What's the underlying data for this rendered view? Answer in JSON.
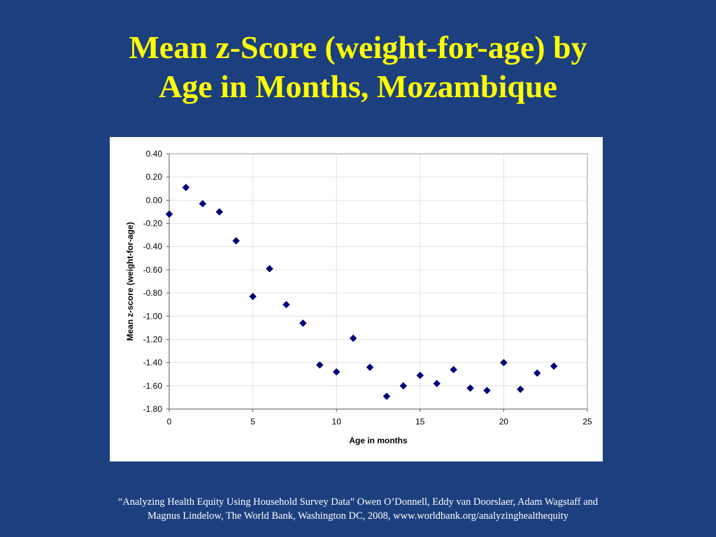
{
  "slide": {
    "title_line1": "Mean z-Score (weight-for-age) by",
    "title_line2": "Age in Months, Mozambique",
    "footer_line1": "“Analyzing Health Equity Using Household Survey Data” Owen O’Donnell, Eddy van Doorslaer, Adam Wagstaff and",
    "footer_line2": "Magnus Lindelow, The World Bank, Washington DC, 2008, www.worldbank.org/analyzinghealthequity"
  },
  "colors": {
    "background": "#1c3f7f",
    "title": "#ffff00",
    "marker": "#00007a",
    "footer_text": "#ffffff"
  },
  "chart_data": {
    "type": "scatter",
    "title": "",
    "xlabel": "Age in months",
    "ylabel": "Mean z-score (weight-for-age)",
    "xlim": [
      0,
      25
    ],
    "ylim": [
      -1.8,
      0.4
    ],
    "xticks": [
      0,
      5,
      10,
      15,
      20,
      25
    ],
    "yticks": [
      0.4,
      0.2,
      0.0,
      -0.2,
      -0.4,
      -0.6,
      -0.8,
      -1.0,
      -1.2,
      -1.4,
      -1.6,
      -1.8
    ],
    "ytick_labels": [
      "0.40",
      "0.20",
      "0.00",
      "-0.20",
      "-0.40",
      "-0.60",
      "-0.80",
      "-1.00",
      "-1.20",
      "-1.40",
      "-1.60",
      "-1.80"
    ],
    "xtick_labels": [
      "0",
      "5",
      "10",
      "15",
      "20",
      "25"
    ],
    "grid": true,
    "marker": "diamond",
    "series": [
      {
        "x": [
          0,
          1,
          2,
          3,
          4,
          5,
          6,
          7,
          8,
          9,
          10,
          11,
          12,
          13,
          14,
          15,
          16,
          17,
          18,
          19,
          20,
          21,
          22,
          23
        ],
        "y": [
          -0.12,
          0.11,
          -0.03,
          -0.1,
          -0.35,
          -0.83,
          -0.59,
          -0.9,
          -1.06,
          -1.42,
          -1.48,
          -1.19,
          -1.44,
          -1.69,
          -1.6,
          -1.51,
          -1.58,
          -1.46,
          -1.62,
          -1.64,
          -1.4,
          -1.63,
          -1.49,
          -1.43
        ]
      }
    ]
  }
}
